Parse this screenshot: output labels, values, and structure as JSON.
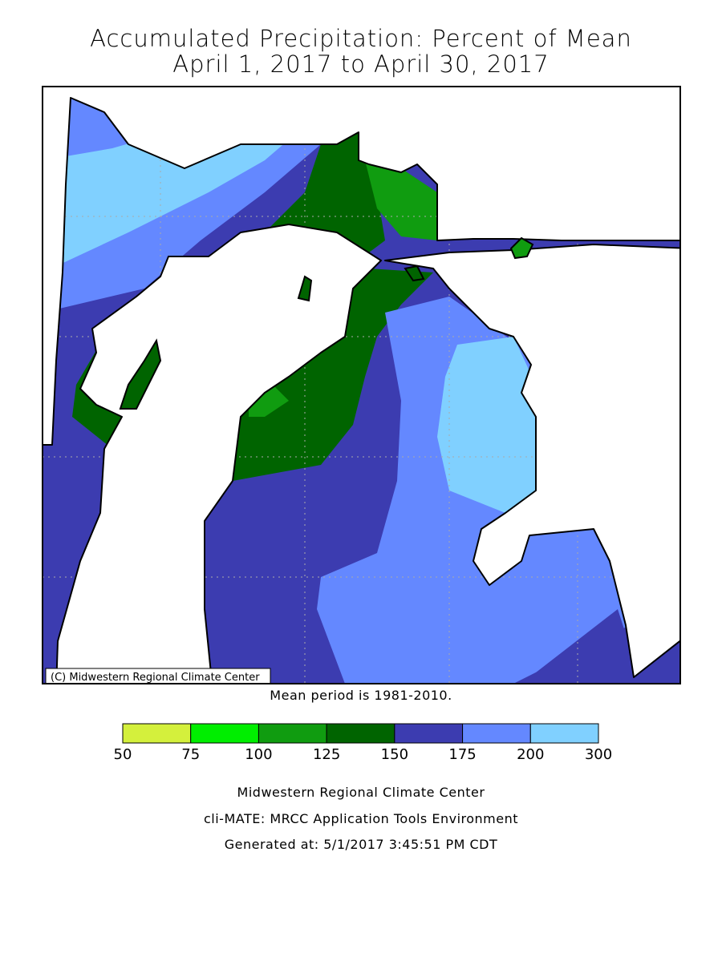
{
  "title": [
    "Accumulated Precipitation: Percent of Mean",
    "April 1, 2017 to April 30, 2017"
  ],
  "copyright": "(C) Midwestern Regional Climate Center",
  "mean_period": "Mean period is 1981-2010.",
  "legend": {
    "bounds": [
      50,
      75,
      100,
      125,
      150,
      175,
      200,
      300
    ],
    "colors": [
      "#d4f03c",
      "#00ee00",
      "#109c10",
      "#006400",
      "#3c3cb0",
      "#6488ff",
      "#80d0ff"
    ]
  },
  "footer": [
    "Midwestern Regional Climate Center",
    "cli-MATE: MRCC Application Tools Environment",
    "Generated at: 5/1/2017 3:45:51 PM CDT"
  ]
}
